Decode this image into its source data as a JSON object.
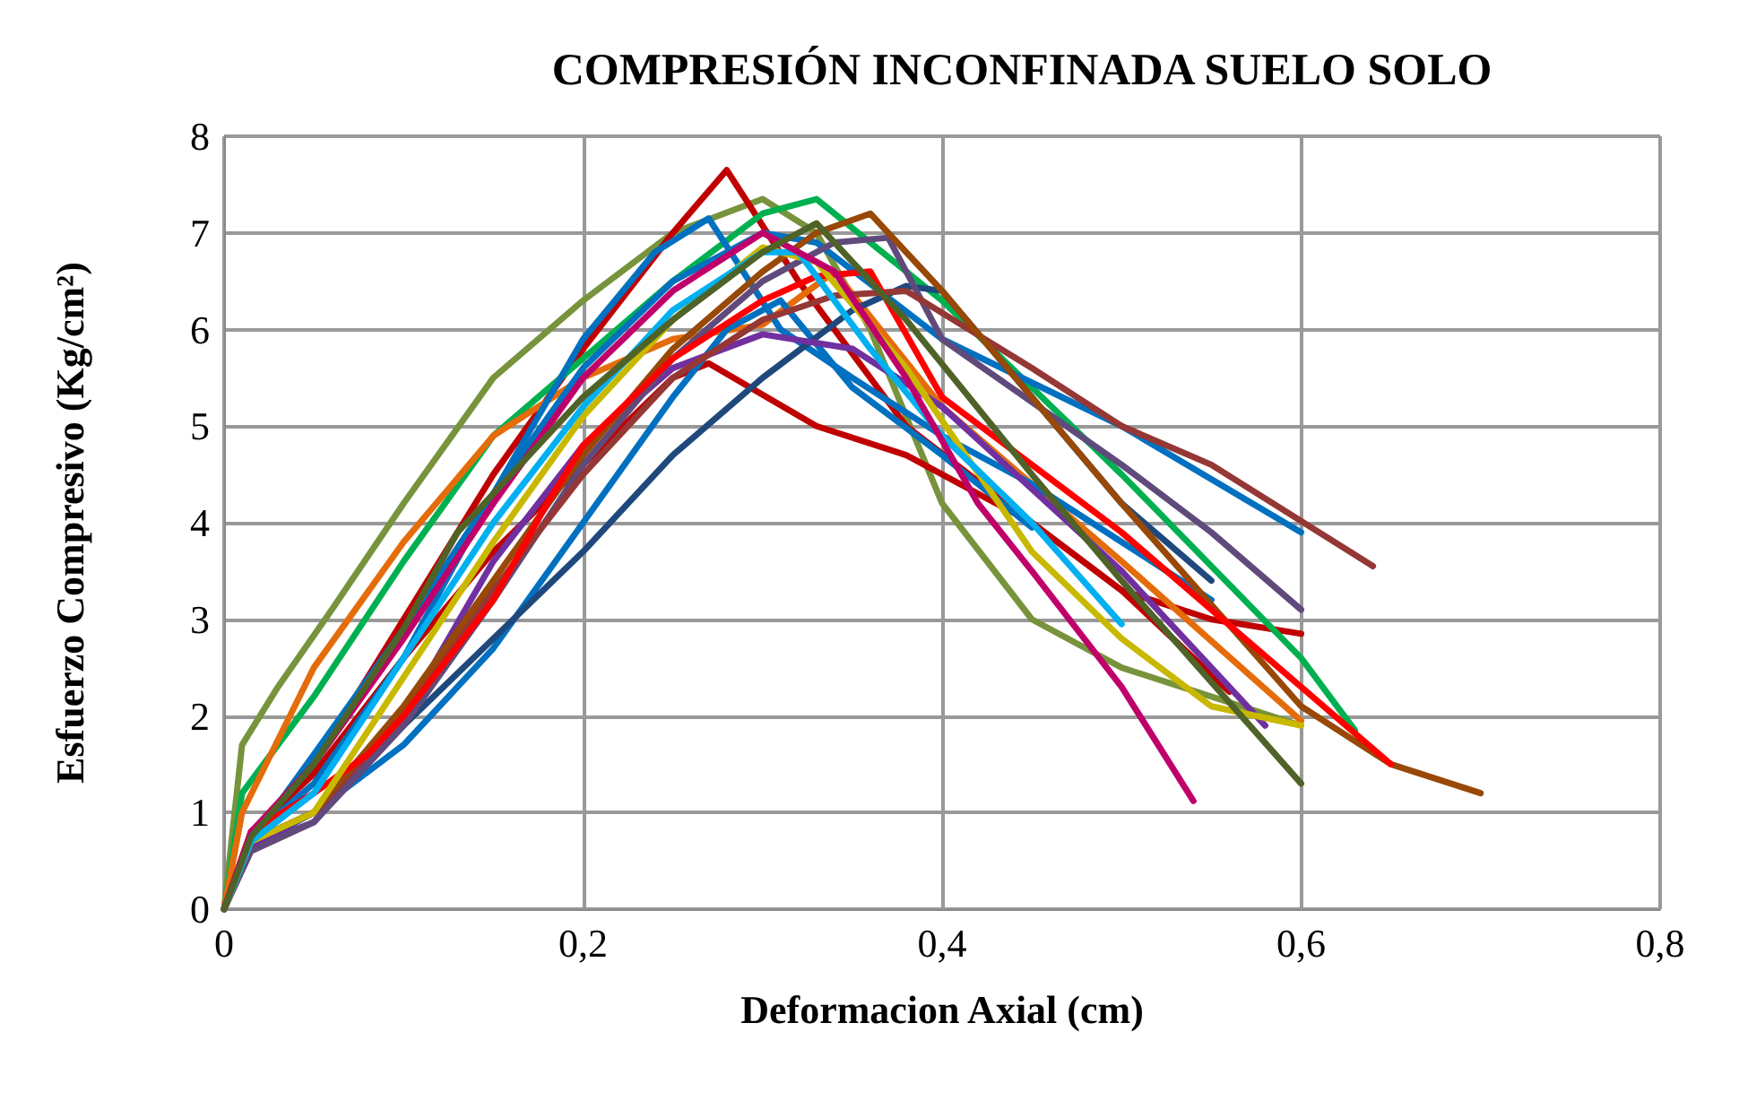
{
  "chart_data": {
    "type": "line",
    "title": "COMPRESIÓN INCONFINADA SUELO SOLO",
    "xlabel": "Deformacion Axial (cm)",
    "ylabel": "Esfuerzo Compresivo (Kg/cm²)",
    "xlim": [
      0,
      0.8
    ],
    "xticks": [
      {
        "value": 0,
        "label": "0"
      },
      {
        "value": 0.2,
        "label": "0,2"
      },
      {
        "value": 0.4,
        "label": "0,4"
      },
      {
        "value": 0.6,
        "label": "0,6"
      },
      {
        "value": 0.8,
        "label": "0,8"
      }
    ],
    "ylim": [
      0,
      8
    ],
    "yticks": [
      0,
      1,
      2,
      3,
      4,
      5,
      6,
      7,
      8
    ],
    "grid": true,
    "marker": "none",
    "line_style": "solid",
    "series": [
      {
        "color": "#77933c",
        "x": [
          0,
          0.01,
          0.03,
          0.06,
          0.1,
          0.15,
          0.2,
          0.25,
          0.3,
          0.33,
          0.36,
          0.4,
          0.45,
          0.5,
          0.6
        ],
        "values": [
          0,
          1.7,
          2.3,
          3.1,
          4.2,
          5.5,
          6.3,
          7.0,
          7.35,
          7.0,
          6.0,
          4.2,
          3.0,
          2.5,
          1.9
        ]
      },
      {
        "color": "#c00000",
        "x": [
          0,
          0.015,
          0.05,
          0.1,
          0.15,
          0.2,
          0.25,
          0.28,
          0.32,
          0.38,
          0.45,
          0.5,
          0.55,
          0.6
        ],
        "values": [
          0,
          0.7,
          1.5,
          3.0,
          4.5,
          5.8,
          7.0,
          7.65,
          6.5,
          5.0,
          4.0,
          3.3,
          3.0,
          2.85
        ]
      },
      {
        "color": "#c00000",
        "x": [
          0,
          0.015,
          0.05,
          0.1,
          0.15,
          0.2,
          0.25,
          0.27,
          0.33,
          0.38,
          0.45,
          0.5,
          0.56
        ],
        "values": [
          0,
          0.8,
          1.4,
          2.6,
          3.7,
          4.6,
          5.5,
          5.65,
          5.0,
          4.7,
          4.0,
          3.3,
          2.25
        ]
      },
      {
        "color": "#00b050",
        "x": [
          0,
          0.01,
          0.05,
          0.1,
          0.15,
          0.2,
          0.25,
          0.3,
          0.33,
          0.4,
          0.5,
          0.6,
          0.63
        ],
        "values": [
          0,
          1.2,
          2.2,
          3.6,
          4.9,
          5.7,
          6.5,
          7.2,
          7.35,
          6.3,
          4.5,
          2.6,
          1.85
        ]
      },
      {
        "color": "#e46c0a",
        "x": [
          0,
          0.01,
          0.05,
          0.1,
          0.15,
          0.2,
          0.25,
          0.3,
          0.34,
          0.4,
          0.5,
          0.6
        ],
        "values": [
          0,
          1.0,
          2.5,
          3.8,
          4.9,
          5.5,
          5.9,
          6.05,
          6.6,
          5.2,
          3.6,
          1.95
        ]
      },
      {
        "color": "#0070c0",
        "x": [
          0,
          0.015,
          0.05,
          0.1,
          0.15,
          0.2,
          0.24,
          0.27,
          0.31,
          0.35,
          0.4,
          0.45,
          0.5,
          0.55
        ],
        "values": [
          0,
          0.75,
          1.3,
          2.6,
          4.3,
          5.9,
          6.8,
          7.15,
          6.0,
          5.5,
          4.9,
          4.4,
          3.8,
          3.2
        ]
      },
      {
        "color": "#0070c0",
        "x": [
          0,
          0.015,
          0.05,
          0.1,
          0.15,
          0.2,
          0.25,
          0.3,
          0.33,
          0.4,
          0.5,
          0.6
        ],
        "values": [
          0,
          0.7,
          1.6,
          2.9,
          4.3,
          5.6,
          6.5,
          7.0,
          6.9,
          5.9,
          5.0,
          3.9
        ]
      },
      {
        "color": "#0070c0",
        "x": [
          0,
          0.015,
          0.05,
          0.1,
          0.15,
          0.2,
          0.25,
          0.28,
          0.31,
          0.35,
          0.4,
          0.45
        ],
        "values": [
          0,
          0.7,
          1.0,
          1.7,
          2.7,
          4.0,
          5.3,
          6.0,
          6.3,
          5.4,
          4.7,
          3.95
        ]
      },
      {
        "color": "#1f497d",
        "x": [
          0,
          0.015,
          0.05,
          0.1,
          0.15,
          0.2,
          0.25,
          0.3,
          0.35,
          0.38,
          0.4,
          0.45,
          0.5,
          0.55
        ],
        "values": [
          0,
          0.65,
          1.0,
          1.9,
          2.8,
          3.7,
          4.7,
          5.5,
          6.2,
          6.45,
          6.4,
          5.3,
          4.2,
          3.4
        ]
      },
      {
        "color": "#7030a0",
        "x": [
          0,
          0.015,
          0.05,
          0.1,
          0.15,
          0.2,
          0.25,
          0.3,
          0.35,
          0.4,
          0.5,
          0.58
        ],
        "values": [
          0,
          0.65,
          0.9,
          2.0,
          3.6,
          4.8,
          5.6,
          5.95,
          5.8,
          5.2,
          3.5,
          1.9
        ]
      },
      {
        "color": "#604a7b",
        "x": [
          0,
          0.015,
          0.05,
          0.1,
          0.15,
          0.2,
          0.25,
          0.3,
          0.34,
          0.37,
          0.4,
          0.5,
          0.55,
          0.6
        ],
        "values": [
          0,
          0.6,
          0.9,
          1.9,
          3.2,
          4.6,
          5.7,
          6.5,
          6.9,
          6.95,
          5.9,
          4.6,
          3.9,
          3.1
        ]
      },
      {
        "color": "#953735",
        "x": [
          0,
          0.015,
          0.05,
          0.1,
          0.15,
          0.2,
          0.25,
          0.3,
          0.34,
          0.38,
          0.45,
          0.5,
          0.55,
          0.64
        ],
        "values": [
          0,
          0.7,
          1.0,
          2.0,
          3.3,
          4.5,
          5.5,
          6.1,
          6.35,
          6.4,
          5.6,
          5.0,
          4.6,
          3.55
        ]
      },
      {
        "color": "#984807",
        "x": [
          0,
          0.015,
          0.05,
          0.1,
          0.15,
          0.2,
          0.25,
          0.3,
          0.33,
          0.36,
          0.4,
          0.5,
          0.6,
          0.65,
          0.7
        ],
        "values": [
          0,
          0.7,
          1.0,
          2.1,
          3.4,
          4.7,
          5.8,
          6.6,
          7.0,
          7.2,
          6.4,
          4.2,
          2.1,
          1.5,
          1.2
        ]
      },
      {
        "color": "#ff0000",
        "x": [
          0,
          0.015,
          0.05,
          0.08,
          0.1,
          0.15,
          0.18,
          0.2,
          0.25,
          0.3,
          0.33,
          0.36,
          0.4,
          0.5,
          0.6,
          0.65
        ],
        "values": [
          0,
          0.8,
          1.2,
          1.6,
          2.0,
          3.2,
          4.2,
          4.8,
          5.7,
          6.3,
          6.55,
          6.6,
          5.3,
          3.9,
          2.3,
          1.5
        ]
      },
      {
        "color": "#c9b800",
        "x": [
          0,
          0.015,
          0.05,
          0.1,
          0.15,
          0.2,
          0.25,
          0.3,
          0.33,
          0.38,
          0.45,
          0.5,
          0.55,
          0.6
        ],
        "values": [
          0,
          0.7,
          1.0,
          2.4,
          3.8,
          5.1,
          6.1,
          6.85,
          6.7,
          5.6,
          3.7,
          2.8,
          2.1,
          1.9
        ]
      },
      {
        "color": "#00b0f0",
        "x": [
          0,
          0.015,
          0.05,
          0.1,
          0.15,
          0.2,
          0.25,
          0.3,
          0.32,
          0.36,
          0.4,
          0.45,
          0.5
        ],
        "values": [
          0,
          0.7,
          1.2,
          2.6,
          4.0,
          5.2,
          6.2,
          6.8,
          6.8,
          5.8,
          4.9,
          4.0,
          2.95
        ]
      },
      {
        "color": "#c0006a",
        "x": [
          0,
          0.015,
          0.05,
          0.1,
          0.15,
          0.2,
          0.25,
          0.3,
          0.34,
          0.38,
          0.42,
          0.45,
          0.5,
          0.54
        ],
        "values": [
          0,
          0.8,
          1.5,
          2.8,
          4.2,
          5.5,
          6.4,
          7.0,
          6.6,
          5.5,
          4.2,
          3.5,
          2.3,
          1.12
        ]
      },
      {
        "color": "#4f6228",
        "x": [
          0,
          0.015,
          0.05,
          0.1,
          0.13,
          0.15,
          0.2,
          0.25,
          0.3,
          0.33,
          0.38,
          0.45,
          0.5,
          0.6
        ],
        "values": [
          0,
          0.75,
          1.5,
          2.9,
          3.9,
          4.3,
          5.3,
          6.1,
          6.8,
          7.1,
          6.1,
          4.5,
          3.4,
          1.3
        ]
      }
    ]
  }
}
